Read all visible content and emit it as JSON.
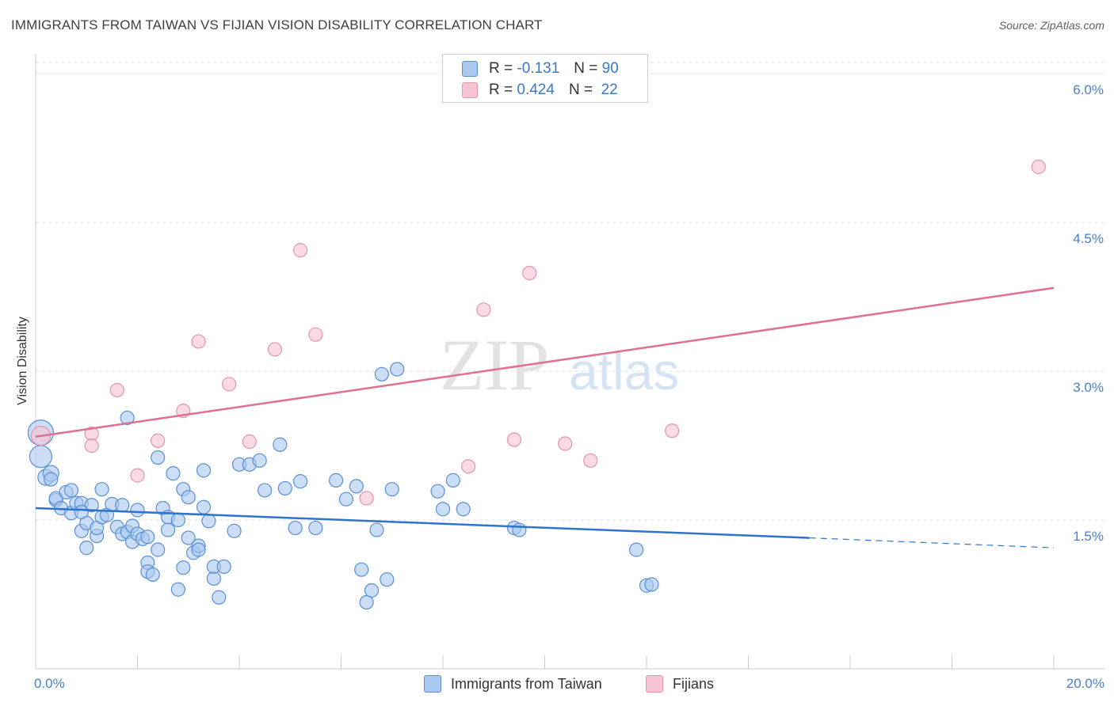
{
  "title": "IMMIGRANTS FROM TAIWAN VS FIJIAN VISION DISABILITY CORRELATION CHART",
  "source": "Source: ZipAtlas.com",
  "colors": {
    "blue_fill": "#a9c8ef",
    "blue_stroke": "#5a8fd6",
    "blue_line": "#2f73cc",
    "pink_fill": "#f6c3d2",
    "pink_stroke": "#e893ad",
    "pink_line": "#e0708f",
    "tick_text": "#4a7fc4",
    "grid": "#dddddd"
  },
  "legend": {
    "rows": [
      {
        "r_label": "R =",
        "r_value": "-0.131",
        "n_label": "N =",
        "n_value": "90",
        "color": "#a9c8ef",
        "border": "#5a8fd6"
      },
      {
        "r_label": "R =",
        "r_value": "0.424",
        "n_label": "N =",
        "n_value": "22",
        "color": "#f6c3d2",
        "border": "#e893ad"
      }
    ]
  },
  "bottom_legend": [
    {
      "label": "Immigrants from Taiwan",
      "color": "#a9c8ef",
      "border": "#5a8fd6"
    },
    {
      "label": "Fijians",
      "color": "#f6c3d2",
      "border": "#e893ad"
    }
  ],
  "watermark": {
    "zip": "ZIP",
    "atlas": "atlas"
  },
  "chart_data": {
    "type": "scatter",
    "title": "IMMIGRANTS FROM TAIWAN VS FIJIAN VISION DISABILITY CORRELATION CHART",
    "xlabel": "",
    "ylabel": "Vision Disability",
    "xlim": [
      0,
      20
    ],
    "ylim": [
      0,
      6.2
    ],
    "x_tick_labels": [
      "0.0%",
      "20.0%"
    ],
    "y_ticks": [
      1.5,
      3.0,
      4.5,
      6.0
    ],
    "y_tick_labels": [
      "1.5%",
      "3.0%",
      "4.5%",
      "6.0%"
    ],
    "series": [
      {
        "name": "Immigrants from Taiwan",
        "r": -0.131,
        "n": 90,
        "points": [
          [
            0.1,
            2.38
          ],
          [
            0.1,
            2.14
          ],
          [
            0.2,
            1.93
          ],
          [
            0.3,
            1.97
          ],
          [
            0.3,
            1.91
          ],
          [
            0.4,
            1.7
          ],
          [
            0.4,
            1.72
          ],
          [
            0.5,
            1.62
          ],
          [
            0.6,
            1.78
          ],
          [
            0.7,
            1.8
          ],
          [
            0.7,
            1.57
          ],
          [
            0.8,
            1.67
          ],
          [
            0.9,
            1.67
          ],
          [
            0.9,
            1.39
          ],
          [
            1.0,
            1.47
          ],
          [
            1.0,
            1.22
          ],
          [
            1.1,
            1.65
          ],
          [
            1.2,
            1.34
          ],
          [
            1.2,
            1.42
          ],
          [
            1.3,
            1.53
          ],
          [
            1.3,
            1.81
          ],
          [
            1.4,
            1.55
          ],
          [
            1.5,
            1.66
          ],
          [
            1.6,
            1.43
          ],
          [
            1.7,
            1.65
          ],
          [
            1.7,
            1.36
          ],
          [
            1.8,
            1.38
          ],
          [
            1.8,
            2.53
          ],
          [
            1.9,
            1.44
          ],
          [
            1.9,
            1.28
          ],
          [
            2.0,
            1.6
          ],
          [
            2.0,
            1.36
          ],
          [
            2.1,
            1.31
          ],
          [
            2.2,
            1.33
          ],
          [
            2.2,
            1.07
          ],
          [
            2.2,
            0.98
          ],
          [
            2.3,
            0.95
          ],
          [
            2.4,
            1.2
          ],
          [
            2.4,
            2.13
          ],
          [
            2.5,
            1.62
          ],
          [
            2.6,
            1.4
          ],
          [
            2.6,
            1.53
          ],
          [
            2.7,
            1.97
          ],
          [
            2.8,
            1.5
          ],
          [
            2.8,
            0.8
          ],
          [
            2.9,
            1.81
          ],
          [
            2.9,
            1.02
          ],
          [
            3.0,
            1.73
          ],
          [
            3.0,
            1.32
          ],
          [
            3.1,
            1.17
          ],
          [
            3.2,
            1.24
          ],
          [
            3.2,
            1.2
          ],
          [
            3.3,
            2.0
          ],
          [
            3.3,
            1.63
          ],
          [
            3.4,
            1.49
          ],
          [
            3.5,
            0.91
          ],
          [
            3.5,
            1.03
          ],
          [
            3.6,
            0.72
          ],
          [
            3.7,
            1.03
          ],
          [
            3.9,
            1.39
          ],
          [
            4.0,
            2.06
          ],
          [
            4.2,
            2.06
          ],
          [
            4.4,
            2.1
          ],
          [
            4.5,
            1.8
          ],
          [
            4.8,
            2.26
          ],
          [
            4.9,
            1.82
          ],
          [
            5.1,
            1.42
          ],
          [
            5.2,
            1.89
          ],
          [
            5.5,
            1.42
          ],
          [
            5.9,
            1.9
          ],
          [
            6.1,
            1.71
          ],
          [
            6.3,
            1.84
          ],
          [
            6.4,
            1.0
          ],
          [
            6.5,
            0.67
          ],
          [
            6.6,
            0.79
          ],
          [
            6.7,
            1.4
          ],
          [
            6.8,
            2.97
          ],
          [
            6.9,
            0.9
          ],
          [
            7.1,
            3.02
          ],
          [
            7.0,
            1.81
          ],
          [
            7.9,
            1.79
          ],
          [
            8.0,
            1.61
          ],
          [
            8.2,
            1.9
          ],
          [
            8.4,
            1.61
          ],
          [
            9.4,
            1.42
          ],
          [
            9.5,
            1.4
          ],
          [
            11.8,
            1.2
          ],
          [
            12.0,
            0.84
          ],
          [
            12.1,
            0.85
          ],
          [
            0.9,
            1.58
          ]
        ],
        "trend": {
          "x_start": 0,
          "y_start": 1.62,
          "x_solid_end": 15.2,
          "y_solid_end": 1.32,
          "x_dash_end": 20,
          "y_dash_end": 1.22
        }
      },
      {
        "name": "Fijians",
        "r": 0.424,
        "n": 22,
        "points": [
          [
            0.1,
            2.35
          ],
          [
            1.1,
            2.37
          ],
          [
            1.1,
            2.25
          ],
          [
            1.6,
            2.81
          ],
          [
            2.0,
            1.95
          ],
          [
            2.4,
            2.3
          ],
          [
            2.9,
            2.6
          ],
          [
            3.2,
            3.3
          ],
          [
            3.8,
            2.87
          ],
          [
            4.2,
            2.29
          ],
          [
            4.7,
            3.22
          ],
          [
            5.2,
            4.22
          ],
          [
            5.5,
            3.37
          ],
          [
            6.5,
            1.72
          ],
          [
            8.5,
            2.04
          ],
          [
            8.8,
            3.62
          ],
          [
            9.4,
            2.31
          ],
          [
            9.7,
            3.99
          ],
          [
            10.4,
            2.27
          ],
          [
            10.9,
            2.1
          ],
          [
            12.5,
            2.4
          ],
          [
            19.7,
            5.06
          ]
        ],
        "trend": {
          "x_start": 0,
          "y_start": 2.34,
          "x_end": 20,
          "y_end": 3.84
        }
      }
    ]
  }
}
